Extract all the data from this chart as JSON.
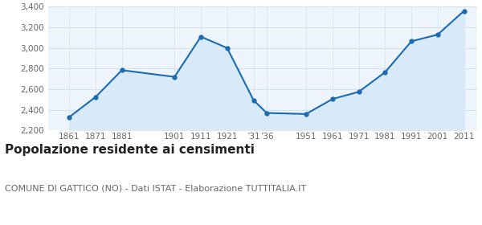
{
  "years": [
    1861,
    1871,
    1881,
    1901,
    1911,
    1921,
    1931,
    1936,
    1951,
    1961,
    1971,
    1981,
    1991,
    2001,
    2011
  ],
  "population": [
    2330,
    2525,
    2785,
    2720,
    3110,
    3000,
    2495,
    2370,
    2360,
    2505,
    2575,
    2765,
    3065,
    3130,
    3360
  ],
  "ylim": [
    2200,
    3400
  ],
  "yticks": [
    2200,
    2400,
    2600,
    2800,
    3000,
    3200,
    3400
  ],
  "xlim_left": 1853,
  "xlim_right": 2016,
  "line_color": "#1c6bb0",
  "fill_color": "#d8eaf7",
  "marker_color": "#1c6bb0",
  "bg_color": "#eef4fb",
  "grid_color": "#c8d8e8",
  "title": "Popolazione residente ai censimenti",
  "subtitle": "COMUNE DI GATTICO (NO) - Dati ISTAT - Elaborazione TUTTITALIA.IT",
  "title_fontsize": 11,
  "subtitle_fontsize": 8,
  "tick_fontsize": 7.5,
  "ytick_fontsize": 7.5
}
